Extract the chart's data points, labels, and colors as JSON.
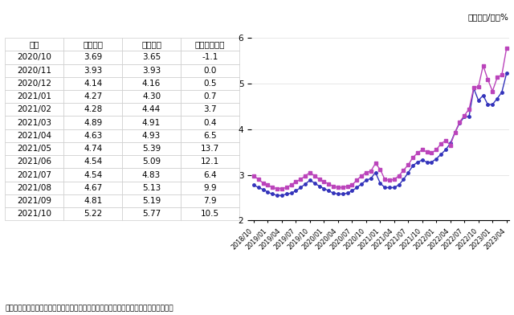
{
  "unit_label": "单位：元/斤，%",
  "note": "注：国内价格为山东四级豆油出厂价，国际价格为到山东港口的南美毛豆油到岸税后价。",
  "legend_domestic": "国内价格",
  "legend_international": "国际价格",
  "table_headers": [
    "月份",
    "国内价格",
    "国际价格",
    "国际比国内高"
  ],
  "table_data": [
    [
      "2020/10",
      "3.69",
      "3.65",
      "-1.1"
    ],
    [
      "2020/11",
      "3.93",
      "3.93",
      "0.0"
    ],
    [
      "2020/12",
      "4.14",
      "4.16",
      "0.5"
    ],
    [
      "2021/01",
      "4.27",
      "4.30",
      "0.7"
    ],
    [
      "2021/02",
      "4.28",
      "4.44",
      "3.7"
    ],
    [
      "2021/03",
      "4.89",
      "4.91",
      "0.4"
    ],
    [
      "2021/04",
      "4.63",
      "4.93",
      "6.5"
    ],
    [
      "2021/05",
      "4.74",
      "5.39",
      "13.7"
    ],
    [
      "2021/06",
      "4.54",
      "5.09",
      "12.1"
    ],
    [
      "2021/07",
      "4.54",
      "4.83",
      "6.4"
    ],
    [
      "2021/08",
      "4.67",
      "5.13",
      "9.9"
    ],
    [
      "2021/09",
      "4.81",
      "5.19",
      "7.9"
    ],
    [
      "2021/10",
      "5.22",
      "5.77",
      "10.5"
    ]
  ],
  "domestic_prices": [
    2.78,
    2.72,
    2.68,
    2.62,
    2.58,
    2.55,
    2.55,
    2.58,
    2.6,
    2.65,
    2.72,
    2.8,
    2.88,
    2.82,
    2.75,
    2.7,
    2.65,
    2.6,
    2.58,
    2.58,
    2.6,
    2.65,
    2.72,
    2.8,
    2.88,
    2.92,
    3.05,
    2.82,
    2.72,
    2.72,
    2.72,
    2.78,
    2.9,
    3.05,
    3.2,
    3.28,
    3.32,
    3.28,
    3.28,
    3.35,
    3.45,
    3.55,
    3.69,
    3.93,
    4.14,
    4.27,
    4.28,
    4.89,
    4.63,
    4.74,
    4.54,
    4.54,
    4.67,
    4.81,
    5.22
  ],
  "international_prices": [
    2.98,
    2.9,
    2.82,
    2.78,
    2.72,
    2.7,
    2.7,
    2.72,
    2.78,
    2.85,
    2.9,
    2.98,
    3.05,
    2.98,
    2.9,
    2.85,
    2.8,
    2.75,
    2.72,
    2.72,
    2.75,
    2.78,
    2.88,
    2.98,
    3.05,
    3.08,
    3.25,
    3.12,
    2.9,
    2.88,
    2.9,
    2.98,
    3.1,
    3.22,
    3.38,
    3.48,
    3.55,
    3.5,
    3.48,
    3.55,
    3.68,
    3.75,
    3.65,
    3.93,
    4.16,
    4.3,
    4.44,
    4.91,
    4.93,
    5.39,
    5.09,
    4.83,
    5.13,
    5.19,
    5.77
  ],
  "domestic_color": "#3333BB",
  "international_color": "#BB44BB",
  "ylim": [
    2,
    6
  ],
  "yticks": [
    2,
    3,
    4,
    5,
    6
  ],
  "bg_color": "#FFFFFF"
}
